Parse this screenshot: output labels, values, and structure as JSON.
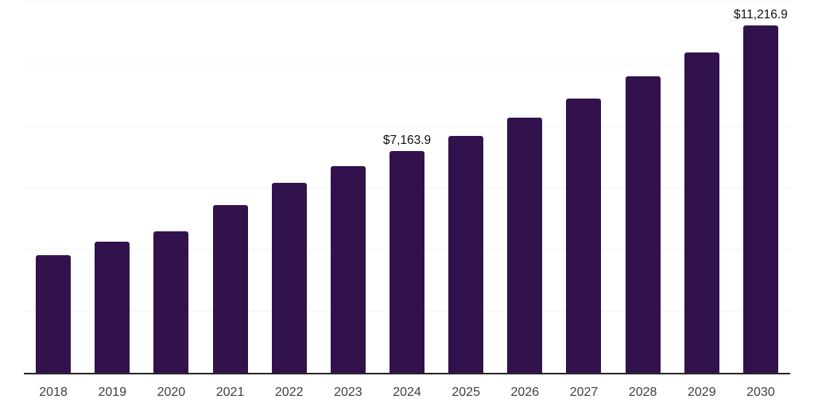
{
  "chart_data": {
    "type": "bar",
    "title": "",
    "xlabel": "",
    "ylabel": "",
    "categories": [
      "2018",
      "2019",
      "2020",
      "2021",
      "2022",
      "2023",
      "2024",
      "2025",
      "2026",
      "2027",
      "2028",
      "2029",
      "2030"
    ],
    "values": [
      3800,
      4230,
      4580,
      5420,
      6130,
      6690,
      7163.9,
      7670,
      8240,
      8860,
      9590,
      10360,
      11216.9
    ],
    "data_labels": [
      "",
      "",
      "",
      "",
      "",
      "",
      "$7,163.9",
      "",
      "",
      "",
      "",
      "",
      "$11,216.9"
    ],
    "ylim": [
      0,
      12000
    ],
    "gridline_values": [
      2000,
      4000,
      6000,
      8000,
      10000,
      12000
    ],
    "grid": "horizontal",
    "legend_position": "none",
    "colors": {
      "bar": "#32124D",
      "axis_line": "#262626",
      "gridline": "#f4f4f4",
      "tick_label": "#404040",
      "data_label": "#111111",
      "background": "#ffffff"
    }
  }
}
